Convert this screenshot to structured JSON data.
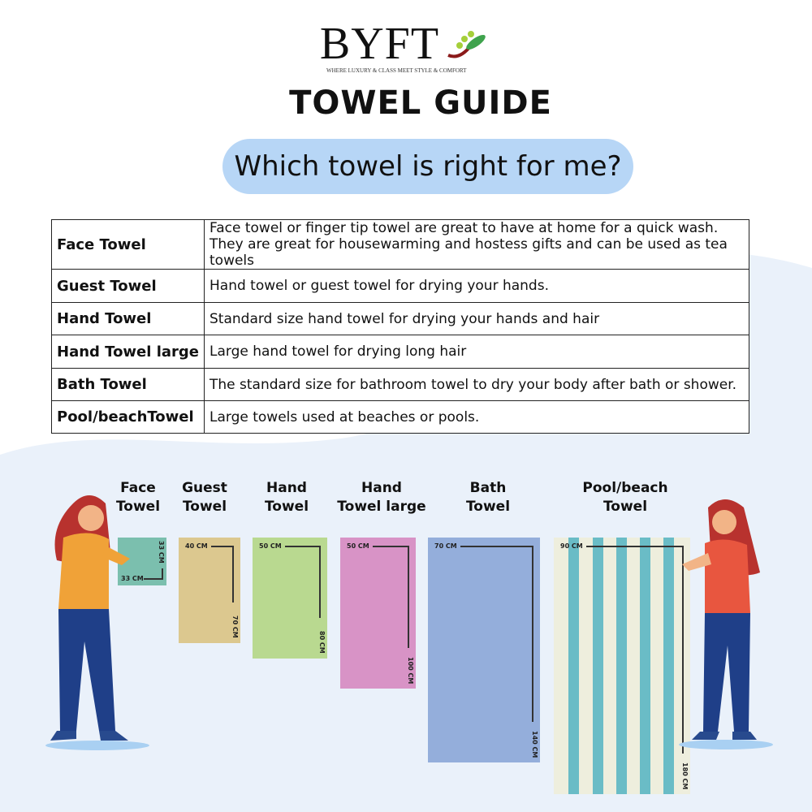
{
  "brand": {
    "name": "BYFT",
    "tagline": "WHERE LUXURY & CLASS MEET STYLE & COMFORT"
  },
  "title": "TOWEL GUIDE",
  "subtitle": "Which towel is right for me?",
  "table": [
    {
      "name": "Face Towel",
      "desc": [
        "Face towel or finger tip towel are great to have at home for a quick wash.",
        "They are great for housewarming and hostess gifts and can be used as tea towels"
      ]
    },
    {
      "name": "Guest Towel",
      "desc": [
        "Hand towel or guest towel for drying your hands."
      ]
    },
    {
      "name": "Hand Towel",
      "desc": [
        "Standard size hand towel for drying your hands and hair"
      ]
    },
    {
      "name": "Hand Towel large",
      "desc": [
        "Large hand towel for drying long hair"
      ]
    },
    {
      "name": "Bath Towel",
      "desc": [
        "The standard size for bathroom towel to dry your body after bath or shower."
      ]
    },
    {
      "name": "Pool/beachTowel",
      "desc": [
        "Large towels used at beaches or pools."
      ]
    }
  ],
  "towels": [
    {
      "label": [
        "Face",
        "Towel"
      ],
      "width": "33 CM",
      "length": "33 CM",
      "color": "#7bbfae"
    },
    {
      "label": [
        "Guest",
        "Towel"
      ],
      "width": "40 CM",
      "length": "70 CM",
      "color": "#dcc88f"
    },
    {
      "label": [
        "Hand",
        "Towel"
      ],
      "width": "50 CM",
      "length": "80 CM",
      "color": "#b9d990"
    },
    {
      "label": [
        "Hand",
        "Towel large"
      ],
      "width": "50 CM",
      "length": "100 CM",
      "color": "#d893c6"
    },
    {
      "label": [
        "Bath",
        "Towel"
      ],
      "width": "70 CM",
      "length": "140 CM",
      "color": "#94aedb"
    },
    {
      "label": [
        "Pool/beach",
        "Towel"
      ],
      "width": "90 CM",
      "length": "180 CM",
      "color": "#eeeedd",
      "stripe_color": "#6abcc6"
    }
  ],
  "colors": {
    "pill": "#b7d6f6",
    "background_blob": "#eaf1fa"
  }
}
